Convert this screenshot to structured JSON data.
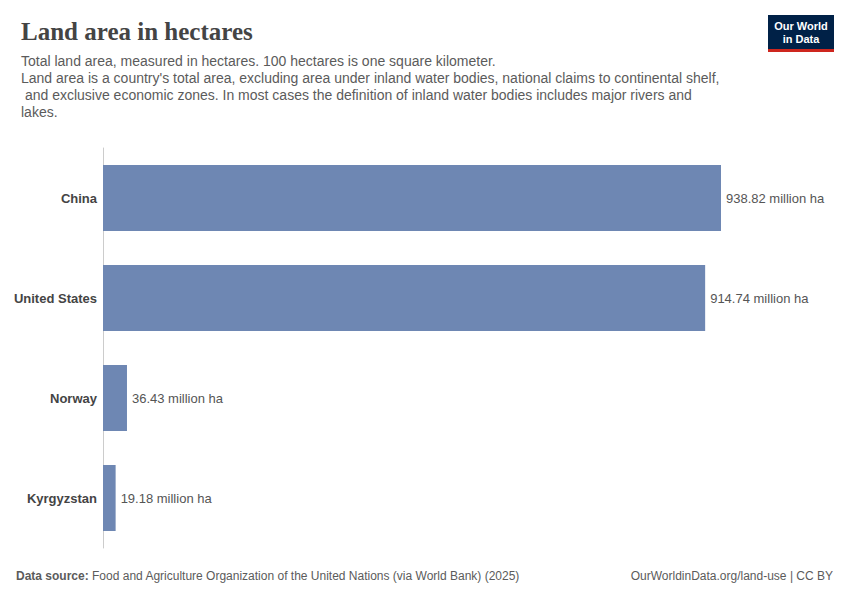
{
  "chart_data": {
    "type": "bar",
    "orientation": "horizontal",
    "title": "Land area in hectares",
    "subtitle": [
      "Total land area, measured in hectares. 100 hectares is one square kilometer.",
      "Land area is a country's total area, excluding area under inland water bodies, national claims to continental shelf, and exclusive economic zones. In most cases the definition of inland water bodies includes major rivers and lakes."
    ],
    "categories": [
      "China",
      "United States",
      "Norway",
      "Kyrgyzstan"
    ],
    "values": [
      938.82,
      914.74,
      36.43,
      19.18
    ],
    "value_labels": [
      "938.82 million ha",
      "914.74 million ha",
      "36.43 million ha",
      "19.18 million ha"
    ],
    "color": "#6e87b3",
    "data_labels": true,
    "tick_labels": "y",
    "grid": false,
    "source_label": "Data source:",
    "source": "Food and Agriculture Organization of the United Nations (via World Bank) (2025)",
    "credit": "OurWorldinData.org/land-use | CC BY",
    "logo": [
      "Our World",
      "in Data"
    ]
  }
}
